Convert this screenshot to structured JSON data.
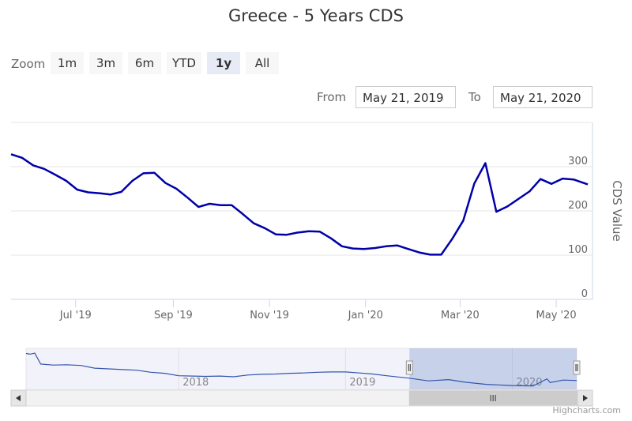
{
  "title": "Greece - 5 Years CDS",
  "zoom": {
    "label": "Zoom",
    "buttons": [
      "1m",
      "3m",
      "6m",
      "YTD",
      "1y",
      "All"
    ],
    "active": "1y"
  },
  "range": {
    "from_label": "From",
    "from_value": "May 21, 2019",
    "to_label": "To",
    "to_value": "May 21, 2020"
  },
  "credits": "Highcharts.com",
  "chart_data": {
    "type": "line",
    "series": [
      {
        "color": "#0000aa",
        "points": [
          [
            "2019-05-21",
            328
          ],
          [
            "2019-05-28",
            320
          ],
          [
            "2019-06-04",
            303
          ],
          [
            "2019-06-11",
            295
          ],
          [
            "2019-06-18",
            282
          ],
          [
            "2019-06-25",
            268
          ],
          [
            "2019-07-02",
            248
          ],
          [
            "2019-07-09",
            242
          ],
          [
            "2019-07-16",
            240
          ],
          [
            "2019-07-23",
            237
          ],
          [
            "2019-07-30",
            243
          ],
          [
            "2019-08-06",
            268
          ],
          [
            "2019-08-13",
            285
          ],
          [
            "2019-08-20",
            286
          ],
          [
            "2019-08-27",
            263
          ],
          [
            "2019-09-03",
            250
          ],
          [
            "2019-09-10",
            230
          ],
          [
            "2019-09-17",
            209
          ],
          [
            "2019-09-24",
            216
          ],
          [
            "2019-10-01",
            213
          ],
          [
            "2019-10-08",
            213
          ],
          [
            "2019-10-15",
            193
          ],
          [
            "2019-10-22",
            172
          ],
          [
            "2019-10-29",
            161
          ],
          [
            "2019-11-05",
            147
          ],
          [
            "2019-11-12",
            146
          ],
          [
            "2019-11-19",
            151
          ],
          [
            "2019-11-26",
            154
          ],
          [
            "2019-12-03",
            153
          ],
          [
            "2019-12-10",
            138
          ],
          [
            "2019-12-17",
            120
          ],
          [
            "2019-12-24",
            115
          ],
          [
            "2019-12-31",
            114
          ],
          [
            "2020-01-07",
            116
          ],
          [
            "2020-01-14",
            120
          ],
          [
            "2020-01-21",
            122
          ],
          [
            "2020-01-28",
            114
          ],
          [
            "2020-02-04",
            106
          ],
          [
            "2020-02-11",
            101
          ],
          [
            "2020-02-18",
            101
          ],
          [
            "2020-02-25",
            137
          ],
          [
            "2020-03-03",
            178
          ],
          [
            "2020-03-10",
            262
          ],
          [
            "2020-03-17",
            308
          ],
          [
            "2020-03-24",
            198
          ],
          [
            "2020-03-31",
            210
          ],
          [
            "2020-04-07",
            227
          ],
          [
            "2020-04-14",
            244
          ],
          [
            "2020-04-21",
            272
          ],
          [
            "2020-04-28",
            261
          ],
          [
            "2020-05-05",
            273
          ],
          [
            "2020-05-12",
            271
          ],
          [
            "2020-05-21",
            260
          ]
        ]
      }
    ],
    "xlim": [
      "2019-05-21",
      "2020-05-21"
    ],
    "x_tick_labels": [
      {
        "date": "2019-07-01",
        "label": "Jul '19"
      },
      {
        "date": "2019-09-01",
        "label": "Sep '19"
      },
      {
        "date": "2019-11-01",
        "label": "Nov '19"
      },
      {
        "date": "2020-01-01",
        "label": "Jan '20"
      },
      {
        "date": "2020-03-01",
        "label": "Mar '20"
      },
      {
        "date": "2020-05-01",
        "label": "May '20"
      }
    ],
    "ylim": [
      0,
      400
    ],
    "y_ticks": [
      0,
      100,
      200,
      300
    ],
    "ylabel": "CDS Value",
    "grid": true,
    "navigator": {
      "xlim": [
        "2017-02-01",
        "2020-05-21"
      ],
      "year_labels": [
        {
          "date": "2018-01-01",
          "label": "2018"
        },
        {
          "date": "2019-01-01",
          "label": "2019"
        },
        {
          "date": "2020-01-01",
          "label": "2020"
        }
      ],
      "selected": [
        "2019-05-21",
        "2020-05-21"
      ],
      "ylim": [
        0,
        1200
      ],
      "points": [
        [
          "2017-02-01",
          1050
        ],
        [
          "2017-02-10",
          1030
        ],
        [
          "2017-02-20",
          1060
        ],
        [
          "2017-03-05",
          740
        ],
        [
          "2017-04-01",
          710
        ],
        [
          "2017-05-01",
          720
        ],
        [
          "2017-06-01",
          700
        ],
        [
          "2017-07-01",
          620
        ],
        [
          "2017-08-01",
          600
        ],
        [
          "2017-09-01",
          580
        ],
        [
          "2017-10-01",
          560
        ],
        [
          "2017-11-01",
          500
        ],
        [
          "2017-12-01",
          470
        ],
        [
          "2018-01-01",
          400
        ],
        [
          "2018-02-01",
          390
        ],
        [
          "2018-03-01",
          380
        ],
        [
          "2018-04-01",
          390
        ],
        [
          "2018-05-01",
          370
        ],
        [
          "2018-06-01",
          420
        ],
        [
          "2018-07-01",
          440
        ],
        [
          "2018-08-01",
          450
        ],
        [
          "2018-09-01",
          470
        ],
        [
          "2018-10-01",
          480
        ],
        [
          "2018-11-01",
          500
        ],
        [
          "2018-12-01",
          510
        ],
        [
          "2019-01-01",
          510
        ],
        [
          "2019-02-01",
          480
        ],
        [
          "2019-03-01",
          450
        ],
        [
          "2019-04-01",
          400
        ],
        [
          "2019-05-21",
          328
        ],
        [
          "2019-07-01",
          250
        ],
        [
          "2019-08-15",
          285
        ],
        [
          "2019-09-20",
          210
        ],
        [
          "2019-11-05",
          147
        ],
        [
          "2019-12-31",
          114
        ],
        [
          "2020-02-15",
          101
        ],
        [
          "2020-03-17",
          308
        ],
        [
          "2020-03-24",
          198
        ],
        [
          "2020-04-21",
          272
        ],
        [
          "2020-05-21",
          260
        ]
      ]
    }
  }
}
